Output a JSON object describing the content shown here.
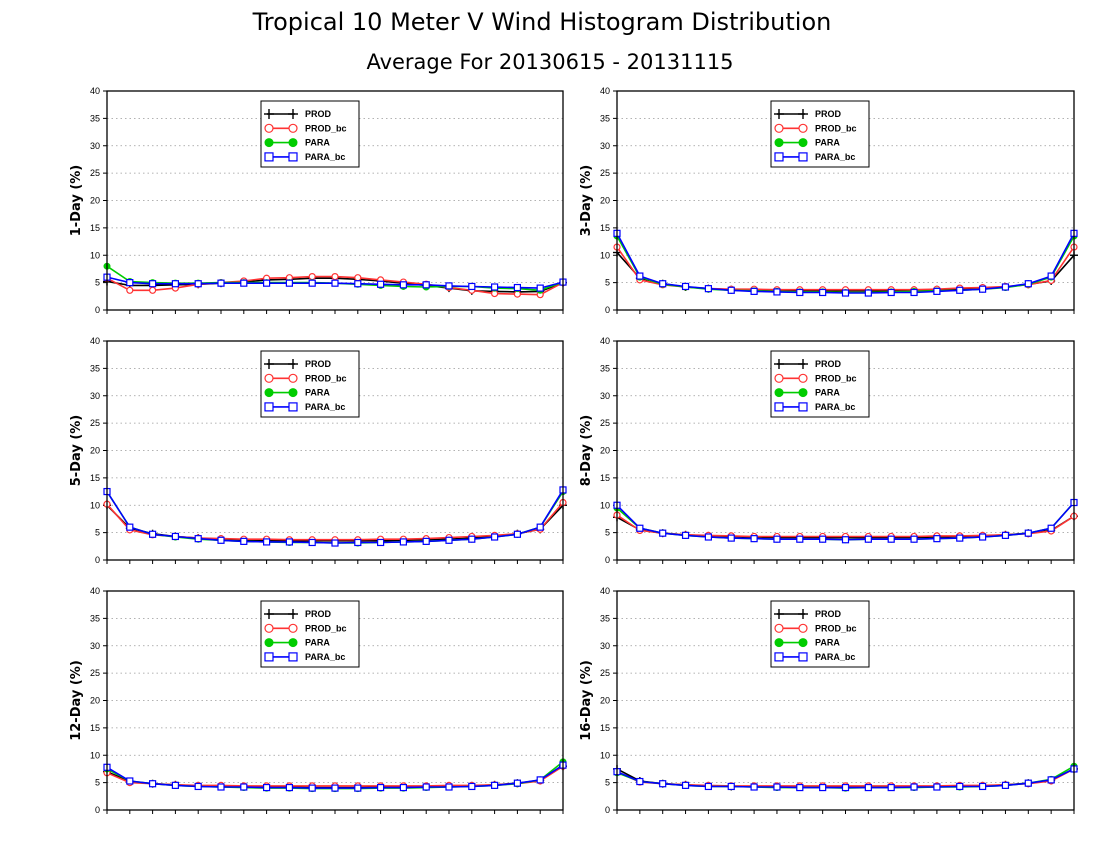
{
  "figure": {
    "title": "Tropical 10 Meter V Wind Histogram Distribution",
    "subtitle": "Average For 20130615 - 20131115"
  },
  "series_styles": [
    {
      "name": "PROD",
      "color": "#000000",
      "marker": "plus"
    },
    {
      "name": "PROD_bc",
      "color": "#ff3333",
      "marker": "open-circle"
    },
    {
      "name": "PARA",
      "color": "#00cc00",
      "marker": "filled-circle"
    },
    {
      "name": "PARA_bc",
      "color": "#0000ff",
      "marker": "open-square"
    }
  ],
  "chart_data": [
    {
      "type": "line",
      "ylabel": "1-Day (%)",
      "ylim": [
        0,
        40
      ],
      "yticks": [
        0,
        5,
        10,
        15,
        20,
        25,
        30,
        35,
        40
      ],
      "grid": "dotted horizontal",
      "legend": "top-center",
      "x": [
        1,
        2,
        3,
        4,
        5,
        6,
        7,
        8,
        9,
        10,
        11,
        12,
        13,
        14,
        15,
        16,
        17,
        18,
        19,
        20,
        21
      ],
      "series": [
        {
          "name": "PROD",
          "values": [
            5.2,
            4.5,
            4.5,
            4.6,
            4.7,
            4.9,
            5.1,
            5.5,
            5.6,
            5.8,
            5.8,
            5.6,
            5.3,
            4.9,
            4.5,
            4.0,
            3.5,
            3.4,
            3.3,
            3.4,
            5.0
          ]
        },
        {
          "name": "PROD_bc",
          "values": [
            5.8,
            3.6,
            3.6,
            4.0,
            4.7,
            5.0,
            5.3,
            5.8,
            5.9,
            6.1,
            6.1,
            5.9,
            5.5,
            5.1,
            4.7,
            4.1,
            3.6,
            3.0,
            2.9,
            2.8,
            5.0
          ]
        },
        {
          "name": "PARA",
          "values": [
            8.0,
            5.2,
            5.0,
            4.9,
            4.9,
            5.0,
            5.0,
            5.0,
            5.0,
            5.0,
            4.9,
            4.7,
            4.5,
            4.3,
            4.2,
            4.3,
            4.3,
            4.0,
            3.9,
            3.6,
            5.1
          ]
        },
        {
          "name": "PARA_bc",
          "values": [
            6.0,
            5.0,
            4.8,
            4.8,
            4.8,
            4.9,
            4.9,
            4.9,
            4.9,
            4.9,
            4.9,
            4.8,
            4.7,
            4.6,
            4.6,
            4.4,
            4.3,
            4.2,
            4.1,
            4.0,
            5.1
          ]
        }
      ]
    },
    {
      "type": "line",
      "ylabel": "3-Day (%)",
      "ylim": [
        0,
        40
      ],
      "yticks": [
        0,
        5,
        10,
        15,
        20,
        25,
        30,
        35,
        40
      ],
      "grid": "dotted horizontal",
      "legend": "top-center",
      "x": [
        1,
        2,
        3,
        4,
        5,
        6,
        7,
        8,
        9,
        10,
        11,
        12,
        13,
        14,
        15,
        16,
        17,
        18,
        19,
        20,
        21
      ],
      "series": [
        {
          "name": "PROD",
          "values": [
            10.5,
            5.8,
            4.8,
            4.2,
            3.9,
            3.7,
            3.6,
            3.5,
            3.5,
            3.5,
            3.5,
            3.5,
            3.5,
            3.6,
            3.7,
            3.8,
            4.0,
            4.2,
            4.7,
            5.3,
            10.0
          ]
        },
        {
          "name": "PROD_bc",
          "values": [
            11.5,
            5.5,
            4.6,
            4.2,
            3.9,
            3.8,
            3.8,
            3.7,
            3.7,
            3.7,
            3.7,
            3.7,
            3.7,
            3.7,
            3.8,
            4.0,
            4.1,
            4.3,
            4.6,
            5.4,
            11.5
          ]
        },
        {
          "name": "PARA",
          "values": [
            13.5,
            6.0,
            4.7,
            4.2,
            3.8,
            3.6,
            3.5,
            3.4,
            3.3,
            3.3,
            3.2,
            3.2,
            3.3,
            3.4,
            3.5,
            3.6,
            3.8,
            4.1,
            4.7,
            6.0,
            13.5
          ]
        },
        {
          "name": "PARA_bc",
          "values": [
            14.0,
            6.2,
            4.8,
            4.3,
            3.9,
            3.6,
            3.4,
            3.3,
            3.2,
            3.2,
            3.1,
            3.1,
            3.2,
            3.2,
            3.4,
            3.6,
            3.8,
            4.2,
            4.8,
            6.2,
            14.0
          ]
        }
      ]
    },
    {
      "type": "line",
      "ylabel": "5-Day (%)",
      "ylim": [
        0,
        40
      ],
      "yticks": [
        0,
        5,
        10,
        15,
        20,
        25,
        30,
        35,
        40
      ],
      "grid": "dotted horizontal",
      "legend": "top-center",
      "x": [
        1,
        2,
        3,
        4,
        5,
        6,
        7,
        8,
        9,
        10,
        11,
        12,
        13,
        14,
        15,
        16,
        17,
        18,
        19,
        20,
        21
      ],
      "series": [
        {
          "name": "PROD",
          "values": [
            10.0,
            5.8,
            4.8,
            4.3,
            4.0,
            3.8,
            3.6,
            3.5,
            3.5,
            3.5,
            3.5,
            3.5,
            3.5,
            3.6,
            3.7,
            3.8,
            4.0,
            4.3,
            4.8,
            5.6,
            10.0
          ]
        },
        {
          "name": "PROD_bc",
          "values": [
            10.2,
            5.5,
            4.6,
            4.3,
            4.0,
            3.9,
            3.8,
            3.8,
            3.7,
            3.7,
            3.7,
            3.7,
            3.8,
            3.8,
            3.9,
            4.1,
            4.3,
            4.5,
            4.8,
            5.6,
            10.5
          ]
        },
        {
          "name": "PARA",
          "values": [
            12.5,
            6.0,
            4.7,
            4.2,
            3.8,
            3.6,
            3.4,
            3.3,
            3.2,
            3.2,
            3.1,
            3.1,
            3.2,
            3.3,
            3.4,
            3.6,
            3.8,
            4.2,
            4.7,
            6.0,
            12.5
          ]
        },
        {
          "name": "PARA_bc",
          "values": [
            12.5,
            6.0,
            4.7,
            4.3,
            3.9,
            3.6,
            3.4,
            3.3,
            3.3,
            3.2,
            3.1,
            3.2,
            3.2,
            3.3,
            3.4,
            3.6,
            3.8,
            4.2,
            4.7,
            6.0,
            12.8
          ]
        }
      ]
    },
    {
      "type": "line",
      "ylabel": "8-Day (%)",
      "ylim": [
        0,
        40
      ],
      "yticks": [
        0,
        5,
        10,
        15,
        20,
        25,
        30,
        35,
        40
      ],
      "grid": "dotted horizontal",
      "legend": "top-center",
      "x": [
        1,
        2,
        3,
        4,
        5,
        6,
        7,
        8,
        9,
        10,
        11,
        12,
        13,
        14,
        15,
        16,
        17,
        18,
        19,
        20,
        21
      ],
      "series": [
        {
          "name": "PROD",
          "values": [
            7.8,
            5.5,
            4.9,
            4.6,
            4.4,
            4.3,
            4.2,
            4.1,
            4.1,
            4.1,
            4.1,
            4.1,
            4.1,
            4.1,
            4.2,
            4.3,
            4.4,
            4.6,
            4.9,
            5.4,
            8.0
          ]
        },
        {
          "name": "PROD_bc",
          "values": [
            8.2,
            5.4,
            4.9,
            4.6,
            4.5,
            4.4,
            4.3,
            4.3,
            4.3,
            4.3,
            4.3,
            4.3,
            4.3,
            4.3,
            4.4,
            4.4,
            4.5,
            4.6,
            4.8,
            5.3,
            8.0
          ]
        },
        {
          "name": "PARA",
          "values": [
            9.5,
            5.8,
            4.9,
            4.5,
            4.2,
            4.0,
            3.9,
            3.8,
            3.8,
            3.8,
            3.7,
            3.8,
            3.8,
            3.8,
            3.9,
            4.0,
            4.2,
            4.5,
            4.9,
            5.8,
            10.5
          ]
        },
        {
          "name": "PARA_bc",
          "values": [
            10.0,
            5.8,
            4.9,
            4.5,
            4.2,
            4.0,
            3.9,
            3.8,
            3.8,
            3.8,
            3.7,
            3.8,
            3.8,
            3.8,
            3.9,
            4.0,
            4.2,
            4.5,
            4.9,
            5.8,
            10.5
          ]
        }
      ]
    },
    {
      "type": "line",
      "ylabel": "12-Day (%)",
      "ylim": [
        0,
        40
      ],
      "yticks": [
        0,
        5,
        10,
        15,
        20,
        25,
        30,
        35,
        40
      ],
      "grid": "dotted horizontal",
      "legend": "top-center",
      "x": [
        1,
        2,
        3,
        4,
        5,
        6,
        7,
        8,
        9,
        10,
        11,
        12,
        13,
        14,
        15,
        16,
        17,
        18,
        19,
        20,
        21
      ],
      "series": [
        {
          "name": "PROD",
          "values": [
            7.0,
            5.2,
            4.8,
            4.6,
            4.4,
            4.3,
            4.3,
            4.2,
            4.2,
            4.1,
            4.1,
            4.1,
            4.2,
            4.2,
            4.3,
            4.3,
            4.4,
            4.6,
            4.9,
            5.4,
            8.0
          ]
        },
        {
          "name": "PROD_bc",
          "values": [
            6.8,
            5.0,
            4.8,
            4.6,
            4.5,
            4.5,
            4.4,
            4.4,
            4.4,
            4.4,
            4.4,
            4.4,
            4.4,
            4.4,
            4.4,
            4.5,
            4.5,
            4.6,
            4.8,
            5.3,
            8.0
          ]
        },
        {
          "name": "PARA",
          "values": [
            7.5,
            5.3,
            4.8,
            4.5,
            4.3,
            4.2,
            4.1,
            4.0,
            4.0,
            3.9,
            3.9,
            3.9,
            4.0,
            4.0,
            4.1,
            4.2,
            4.3,
            4.5,
            4.8,
            5.5,
            8.8
          ]
        },
        {
          "name": "PARA_bc",
          "values": [
            7.8,
            5.3,
            4.8,
            4.5,
            4.3,
            4.2,
            4.2,
            4.1,
            4.1,
            4.0,
            4.0,
            4.0,
            4.1,
            4.1,
            4.2,
            4.2,
            4.3,
            4.5,
            4.9,
            5.5,
            8.2
          ]
        }
      ]
    },
    {
      "type": "line",
      "ylabel": "16-Day (%)",
      "ylim": [
        0,
        40
      ],
      "yticks": [
        0,
        5,
        10,
        15,
        20,
        25,
        30,
        35,
        40
      ],
      "grid": "dotted horizontal",
      "legend": "top-center",
      "x": [
        1,
        2,
        3,
        4,
        5,
        6,
        7,
        8,
        9,
        10,
        11,
        12,
        13,
        14,
        15,
        16,
        17,
        18,
        19,
        20,
        21
      ],
      "series": [
        {
          "name": "PROD",
          "values": [
            7.5,
            5.3,
            4.8,
            4.6,
            4.4,
            4.3,
            4.3,
            4.2,
            4.2,
            4.2,
            4.2,
            4.2,
            4.2,
            4.2,
            4.3,
            4.3,
            4.4,
            4.6,
            4.9,
            5.4,
            7.5
          ]
        },
        {
          "name": "PROD_bc",
          "values": [
            7.0,
            5.1,
            4.8,
            4.6,
            4.5,
            4.4,
            4.4,
            4.4,
            4.4,
            4.4,
            4.4,
            4.4,
            4.4,
            4.4,
            4.4,
            4.5,
            4.5,
            4.6,
            4.8,
            5.3,
            7.5
          ]
        },
        {
          "name": "PARA",
          "values": [
            6.8,
            5.2,
            4.8,
            4.5,
            4.3,
            4.3,
            4.2,
            4.1,
            4.1,
            4.1,
            4.0,
            4.1,
            4.1,
            4.1,
            4.2,
            4.2,
            4.3,
            4.5,
            4.9,
            5.6,
            8.0
          ]
        },
        {
          "name": "PARA_bc",
          "values": [
            7.0,
            5.2,
            4.8,
            4.5,
            4.3,
            4.3,
            4.2,
            4.2,
            4.1,
            4.1,
            4.1,
            4.1,
            4.1,
            4.2,
            4.2,
            4.3,
            4.3,
            4.5,
            4.9,
            5.5,
            7.5
          ]
        }
      ]
    }
  ]
}
